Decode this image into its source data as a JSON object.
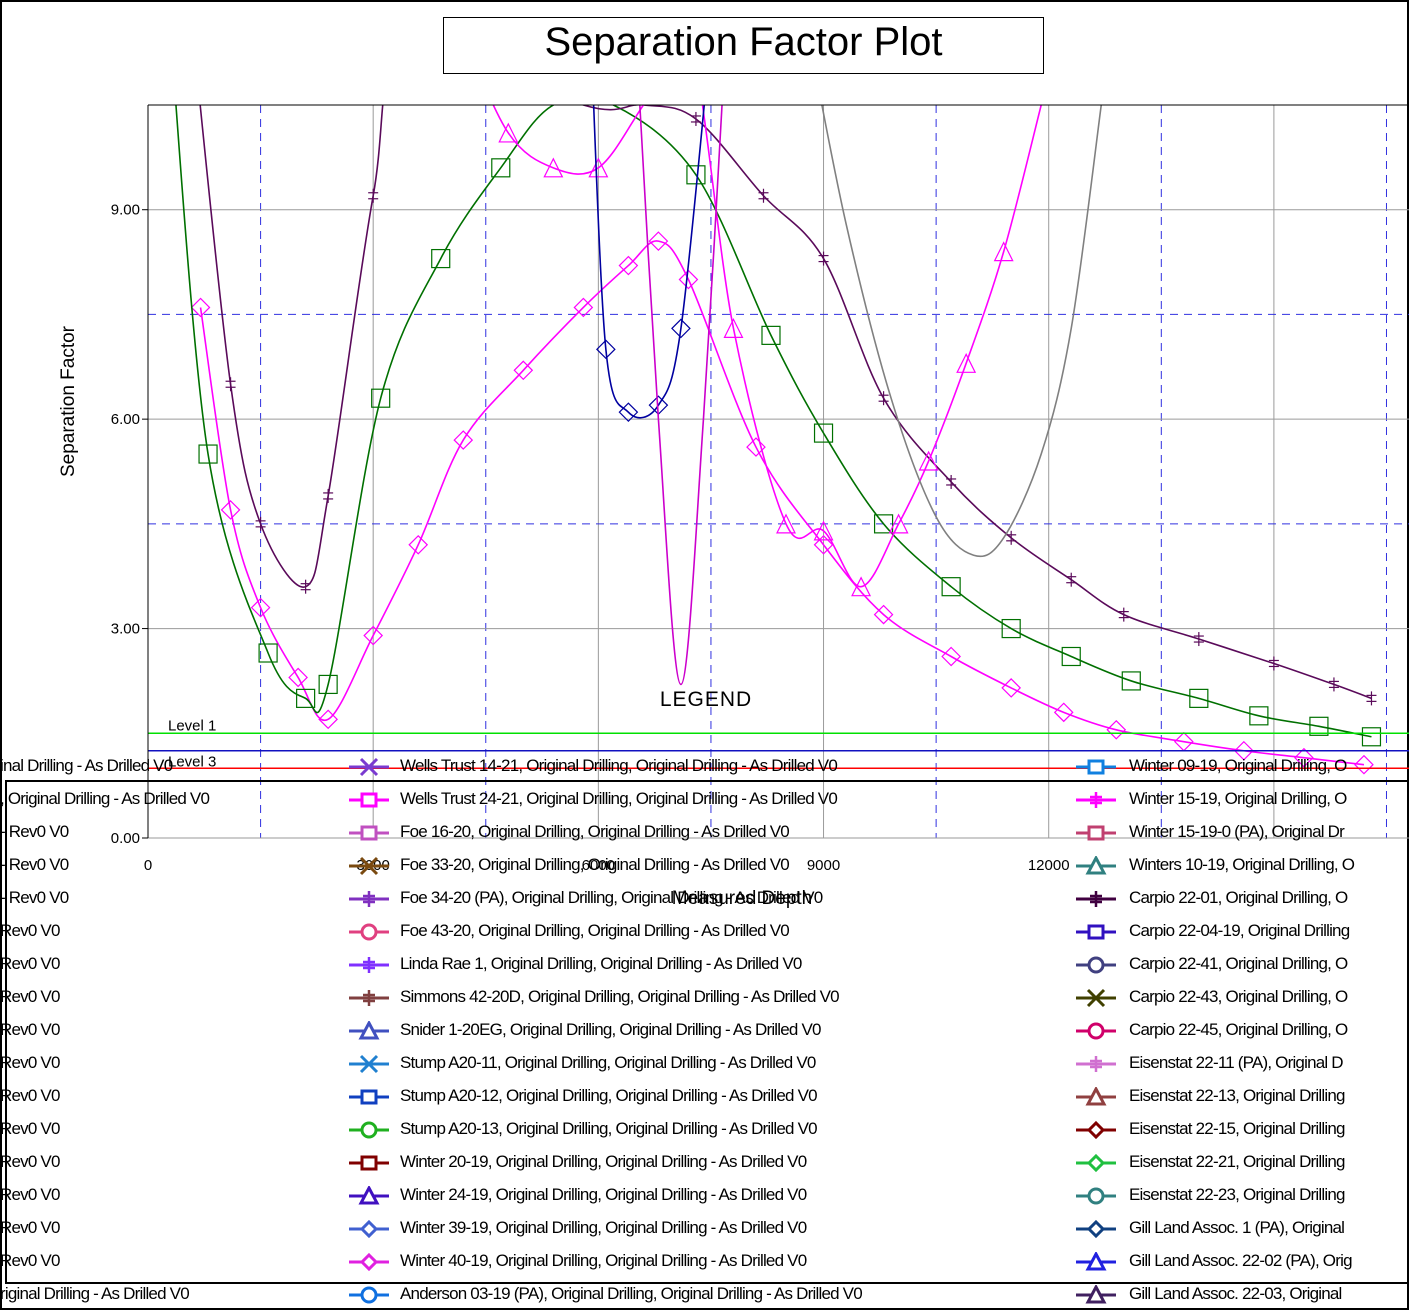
{
  "title": "Separation Factor Plot",
  "chart_data": {
    "type": "line",
    "title": "Separation Factor Plot",
    "xlabel": "Measured Depth",
    "ylabel": "Separation Factor",
    "xlim": [
      0,
      16800
    ],
    "ylim": [
      0,
      10.5
    ],
    "x_ticks": [
      "0",
      "3000",
      "6000",
      "9000",
      "12000"
    ],
    "y_ticks": [
      "0.00",
      "3.00",
      "6.00",
      "9.00"
    ],
    "grid": true,
    "levels": [
      {
        "name": "Level 1",
        "value": 1.5,
        "color": "#00e000"
      },
      {
        "name": "Level 3",
        "value": 1.25,
        "color": "#1010c0"
      },
      {
        "name": "",
        "value": 1.0,
        "color": "#ff0000"
      }
    ],
    "dashed_levels": [
      7.5,
      4.5
    ],
    "series": [
      {
        "name": "Winter 40-19, Original Drilling, Original Drilling - As Drilled V0",
        "color": "#ff00ff",
        "marker": "diamond",
        "x": [
          700,
          1100,
          1500,
          2000,
          2400,
          3000,
          3600,
          4200,
          5000,
          5800,
          6400,
          6800,
          7200,
          8100,
          9000,
          9800,
          10700,
          11500,
          12200,
          12900,
          13800,
          14600,
          15400,
          16200
        ],
        "y": [
          7.6,
          4.7,
          3.3,
          2.3,
          1.7,
          2.9,
          4.2,
          5.7,
          6.7,
          7.6,
          8.2,
          8.55,
          8.0,
          5.6,
          4.2,
          3.2,
          2.6,
          2.15,
          1.8,
          1.55,
          1.38,
          1.25,
          1.15,
          1.05
        ]
      },
      {
        "name": "Winter 09-19, Original Drilling, Original Drilling - As Drilled V0",
        "color": "#007000",
        "marker": "square",
        "x": [
          300,
          800,
          1600,
          2100,
          2400,
          3100,
          3900,
          4700,
          5400,
          6200,
          7300,
          8300,
          9000,
          9800,
          10700,
          11500,
          12300,
          13100,
          14000,
          14800,
          15600,
          16300
        ],
        "y": [
          11.5,
          5.5,
          2.65,
          2.0,
          2.2,
          6.3,
          8.3,
          9.6,
          10.5,
          10.5,
          9.5,
          7.2,
          5.8,
          4.5,
          3.6,
          3.0,
          2.6,
          2.25,
          2.0,
          1.75,
          1.6,
          1.45
        ]
      },
      {
        "name": "Carpio 22-01, Original Drilling, Original Drilling - As Drilled V0",
        "color": "#5a0a5a",
        "marker": "cross",
        "x": [
          600,
          1100,
          1500,
          2100,
          2400,
          3000,
          3500,
          5800,
          6600,
          7300,
          8200,
          9000,
          9800,
          10700,
          11500,
          12300,
          13000,
          14000,
          15000,
          15800,
          16300
        ],
        "y": [
          11.5,
          6.5,
          4.5,
          3.6,
          4.9,
          9.2,
          11.5,
          10.5,
          10.5,
          10.3,
          9.2,
          8.3,
          6.3,
          5.1,
          4.3,
          3.7,
          3.2,
          2.85,
          2.5,
          2.2,
          2.0
        ]
      },
      {
        "name": "Wells Trust 24-21, Original Drilling, Original Drilling - As Drilled V0",
        "color": "#ff00ff",
        "marker": "triangle",
        "x": [
          4200,
          4800,
          5400,
          6000,
          6600,
          7200,
          7800,
          8500,
          9000,
          9500,
          10000,
          10400,
          10900,
          11400,
          11900
        ],
        "y": [
          11.5,
          10.1,
          9.6,
          9.6,
          10.5,
          11.5,
          7.3,
          4.5,
          4.4,
          3.6,
          4.5,
          5.4,
          6.8,
          8.4,
          10.5
        ]
      },
      {
        "name": "Foe 16-20, Original Drilling, Original Drilling - As Drilled V0",
        "color": "#808080",
        "marker": "none",
        "x": [
          8800,
          9300,
          9900,
          10500,
          11000,
          11400,
          11900,
          12300,
          12700
        ],
        "y": [
          11.5,
          8.8,
          6.3,
          4.6,
          4.05,
          4.3,
          5.5,
          7.3,
          10.5
        ]
      },
      {
        "name": "Stump A20-12, Original Drilling, Original Drilling - As Drilled V0",
        "color": "#0000a0",
        "marker": "diamond",
        "x": [
          5900,
          6100,
          6400,
          6800,
          7100,
          7500
        ],
        "y": [
          11.5,
          7.0,
          6.1,
          6.2,
          7.3,
          11.5
        ]
      },
      {
        "name": "Foe 34-20 (PA), Original Drilling, Original Drilling - As Drilled V0",
        "color": "#cc00cc",
        "marker": "none",
        "x": [
          6500,
          6800,
          7100,
          7400,
          7700
        ],
        "y": [
          11.5,
          6.0,
          2.2,
          6.0,
          11.5
        ]
      }
    ],
    "legend": {
      "title": "LEGEND",
      "col0": [
        "inal Drilling - As Drilled V0",
        ", Original Drilling - As Drilled V0",
        "- Rev0 V0",
        "- Rev0 V0",
        "- Rev0 V0",
        "Rev0 V0",
        "Rev0 V0",
        "Rev0 V0",
        "Rev0 V0",
        "Rev0 V0",
        "Rev0 V0",
        "Rev0 V0",
        "Rev0 V0",
        "Rev0 V0",
        "Rev0 V0",
        "Rev0 V0",
        "riginal Drilling - As Drilled V0"
      ],
      "col1": [
        {
          "label": "Wells Trust 14-21, Original Drilling, Original Drilling - As Drilled V0",
          "color": "#7a3ad0",
          "marker": "x"
        },
        {
          "label": "Wells Trust 24-21, Original Drilling, Original Drilling - As Drilled V0",
          "color": "#ff00ff",
          "marker": "square"
        },
        {
          "label": "Foe 16-20, Original Drilling, Original Drilling - As Drilled V0",
          "color": "#c050c0",
          "marker": "square"
        },
        {
          "label": "Foe 33-20, Original Drilling, Original Drilling - As Drilled V0",
          "color": "#7a4a10",
          "marker": "x"
        },
        {
          "label": "Foe 34-20 (PA), Original Drilling, Original Drilling - As Drilled V0",
          "color": "#8030c0",
          "marker": "cross"
        },
        {
          "label": "Foe 43-20, Original Drilling, Original Drilling - As Drilled V0",
          "color": "#e04080",
          "marker": "circle"
        },
        {
          "label": "Linda Rae 1, Original Drilling, Original Drilling - As Drilled V0",
          "color": "#8030ff",
          "marker": "cross"
        },
        {
          "label": "Simmons 42-20D, Original Drilling, Original Drilling - As Drilled V0",
          "color": "#804040",
          "marker": "cross"
        },
        {
          "label": "Snider 1-20EG, Original Drilling, Original Drilling - As Drilled V0",
          "color": "#4050c0",
          "marker": "triangle"
        },
        {
          "label": "Stump A20-11, Original Drilling, Original Drilling - As Drilled V0",
          "color": "#2080d0",
          "marker": "x"
        },
        {
          "label": "Stump A20-12, Original Drilling, Original Drilling - As Drilled V0",
          "color": "#1040c0",
          "marker": "square"
        },
        {
          "label": "Stump A20-13, Original Drilling, Original Drilling - As Drilled V0",
          "color": "#20b020",
          "marker": "circle"
        },
        {
          "label": "Winter 20-19, Original Drilling, Original Drilling - As Drilled V0",
          "color": "#800000",
          "marker": "square"
        },
        {
          "label": "Winter 24-19, Original Drilling, Original Drilling - As Drilled V0",
          "color": "#4010c0",
          "marker": "triangle"
        },
        {
          "label": "Winter 39-19, Original Drilling, Original Drilling - As Drilled V0",
          "color": "#4060d0",
          "marker": "diamond"
        },
        {
          "label": "Winter 40-19, Original Drilling, Original Drilling - As Drilled V0",
          "color": "#e020e0",
          "marker": "diamond"
        },
        {
          "label": "Anderson 03-19 (PA), Original Drilling, Original Drilling - As Drilled V0",
          "color": "#1070e0",
          "marker": "circle"
        }
      ],
      "col2": [
        {
          "label": "Winter 09-19, Original Drilling, O",
          "color": "#1080e0",
          "marker": "square"
        },
        {
          "label": "Winter 15-19, Original Drilling, O",
          "color": "#ff00ff",
          "marker": "cross"
        },
        {
          "label": "Winter 15-19-0 (PA), Original Dr",
          "color": "#c04070",
          "marker": "square"
        },
        {
          "label": "Winters 10-19, Original Drilling, O",
          "color": "#308080",
          "marker": "triangle"
        },
        {
          "label": "Carpio 22-01, Original Drilling, O",
          "color": "#400040",
          "marker": "cross"
        },
        {
          "label": "Carpio 22-04-19, Original Drilling",
          "color": "#3010c0",
          "marker": "square"
        },
        {
          "label": "Carpio 22-41, Original Drilling, O",
          "color": "#404080",
          "marker": "circle"
        },
        {
          "label": "Carpio 22-43, Original Drilling, O",
          "color": "#404000",
          "marker": "x"
        },
        {
          "label": "Carpio 22-45, Original Drilling, O",
          "color": "#d0006a",
          "marker": "circle"
        },
        {
          "label": "Eisenstat 22-11 (PA), Original D",
          "color": "#d070d0",
          "marker": "cross"
        },
        {
          "label": "Eisenstat 22-13, Original Drilling",
          "color": "#904040",
          "marker": "triangle"
        },
        {
          "label": "Eisenstat 22-15, Original Drilling",
          "color": "#800000",
          "marker": "diamond"
        },
        {
          "label": "Eisenstat 22-21, Original Drilling",
          "color": "#20c040",
          "marker": "diamond"
        },
        {
          "label": "Eisenstat 22-23, Original Drilling",
          "color": "#308080",
          "marker": "circle"
        },
        {
          "label": "Gill Land Assoc. 1 (PA), Original",
          "color": "#104080",
          "marker": "diamond"
        },
        {
          "label": "Gill Land Assoc. 22-02 (PA), Orig",
          "color": "#2020e0",
          "marker": "triangle"
        },
        {
          "label": "Gill Land Assoc. 22-03, Original",
          "color": "#402060",
          "marker": "triangle"
        }
      ]
    }
  }
}
